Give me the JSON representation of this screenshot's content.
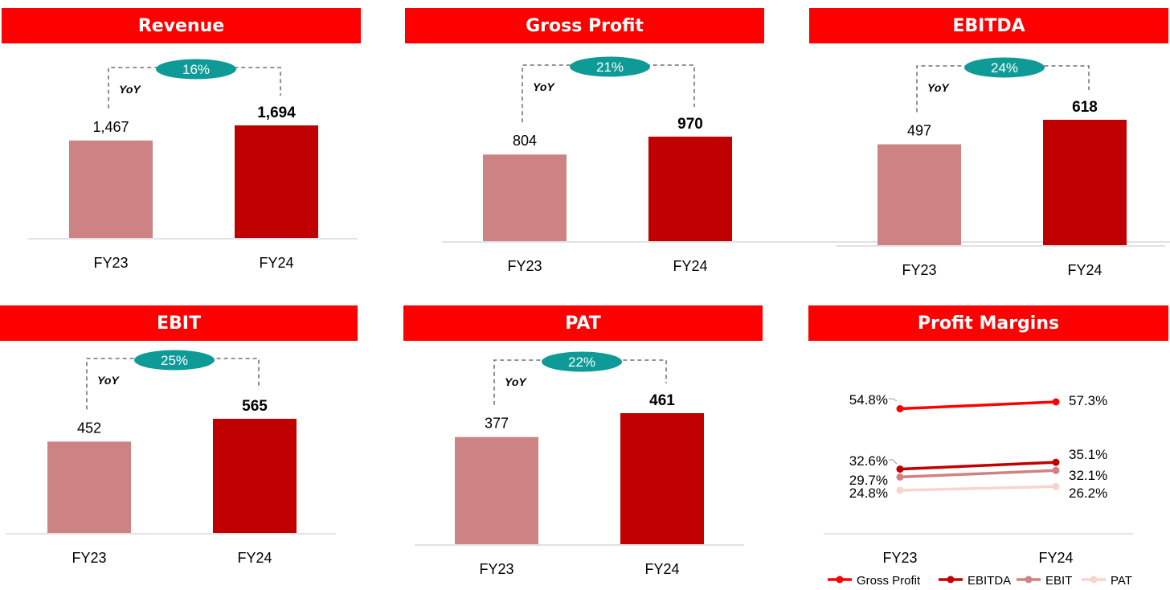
{
  "colors": {
    "header_bg": "#ff0000",
    "fy23_bar": "#cd8283",
    "fy24_bar": "#c00000",
    "pill": "#0e9a96",
    "gross_profit": "#ff0000",
    "ebitda": "#c00000",
    "ebit": "#cd8283",
    "pat": "#f8d5cc"
  },
  "panels": {
    "revenue": {
      "title": "Revenue",
      "yoy_label": "YoY",
      "yoy_value": "16%",
      "fy23_label": "1,467",
      "fy24_label": "1,694"
    },
    "gross_profit": {
      "title": "Gross Profit",
      "yoy_label": "YoY",
      "yoy_value": "21%",
      "fy23_label": "804",
      "fy24_label": "970"
    },
    "ebitda": {
      "title": "EBITDA",
      "yoy_label": "YoY",
      "yoy_value": "24%",
      "fy23_label": "497",
      "fy24_label": "618"
    },
    "ebit": {
      "title": "EBIT",
      "yoy_label": "YoY",
      "yoy_value": "25%",
      "fy23_label": "452",
      "fy24_label": "565"
    },
    "pat": {
      "title": "PAT",
      "yoy_label": "YoY",
      "yoy_value": "22%",
      "fy23_label": "377",
      "fy24_label": "461"
    },
    "margins": {
      "title": "Profit Margins"
    }
  },
  "chart_data": [
    {
      "type": "bar",
      "title": "Revenue",
      "categories": [
        "FY23",
        "FY24"
      ],
      "values": [
        1467,
        1694
      ],
      "annotation": "YoY 16%"
    },
    {
      "type": "bar",
      "title": "Gross Profit",
      "categories": [
        "FY23",
        "FY24"
      ],
      "values": [
        804,
        970
      ],
      "annotation": "YoY 21%"
    },
    {
      "type": "bar",
      "title": "EBITDA",
      "categories": [
        "FY23",
        "FY24"
      ],
      "values": [
        497,
        618
      ],
      "annotation": "YoY 24%"
    },
    {
      "type": "bar",
      "title": "EBIT",
      "categories": [
        "FY23",
        "FY24"
      ],
      "values": [
        452,
        565
      ],
      "annotation": "YoY 25%"
    },
    {
      "type": "bar",
      "title": "PAT",
      "categories": [
        "FY23",
        "FY24"
      ],
      "values": [
        377,
        461
      ],
      "annotation": "YoY 22%"
    },
    {
      "type": "line",
      "title": "Profit Margins",
      "x": [
        "FY23",
        "FY24"
      ],
      "legend_position": "bottom",
      "series": [
        {
          "name": "Gross Profit",
          "values": [
            54.8,
            57.3
          ],
          "labels": [
            "54.8%",
            "57.3%"
          ]
        },
        {
          "name": "EBITDA",
          "values": [
            32.6,
            35.1
          ],
          "labels": [
            "32.6%",
            "35.1%"
          ]
        },
        {
          "name": "EBIT",
          "values": [
            29.7,
            32.1
          ],
          "labels": [
            "29.7%",
            "32.1%"
          ]
        },
        {
          "name": "PAT",
          "values": [
            24.8,
            26.2
          ],
          "labels": [
            "24.8%",
            "26.2%"
          ]
        }
      ]
    }
  ]
}
